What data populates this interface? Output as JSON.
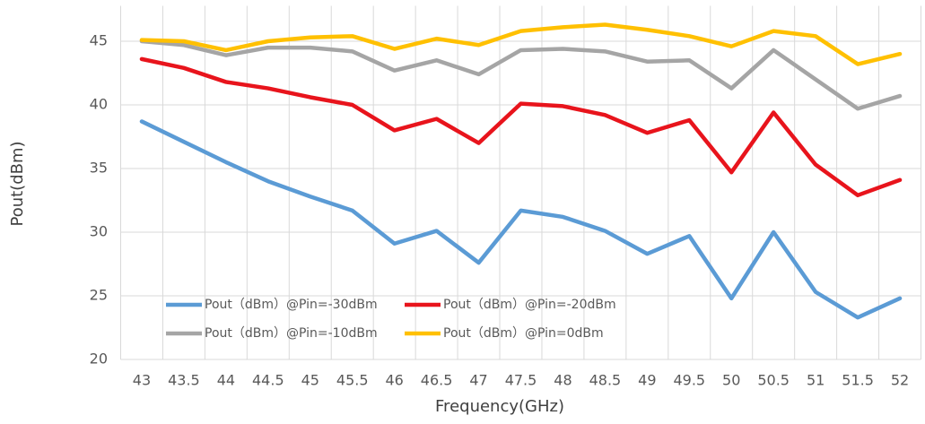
{
  "chart_data": {
    "type": "line",
    "categories": [
      "43",
      "43.5",
      "44",
      "44.5",
      "45",
      "45.5",
      "46",
      "46.5",
      "47",
      "47.5",
      "48",
      "48.5",
      "49",
      "49.5",
      "50",
      "50.5",
      "51",
      "51.5",
      "52"
    ],
    "x_label": "Frequency(GHz)",
    "y_label": "Pout(dBm)",
    "ylim": [
      20,
      47.5
    ],
    "yticks": [
      20,
      25,
      30,
      35,
      40,
      45
    ],
    "grid": true,
    "legend": "lower left",
    "series": [
      {
        "name": "Pout（dBm）@Pin=-30dBm",
        "color": "#5b9bd5",
        "values": [
          38.7,
          37.1,
          35.5,
          34.0,
          32.8,
          31.7,
          29.1,
          30.1,
          27.6,
          31.7,
          31.2,
          30.1,
          28.3,
          29.7,
          24.8,
          30.0,
          25.3,
          23.3,
          24.8
        ]
      },
      {
        "name": "Pout（dBm）@Pin=-20dBm",
        "color": "#e8141c",
        "values": [
          43.6,
          42.9,
          41.8,
          41.3,
          40.6,
          40.0,
          38.0,
          38.9,
          37.0,
          40.1,
          39.9,
          39.2,
          37.8,
          38.8,
          34.7,
          39.4,
          35.3,
          32.9,
          34.1
        ]
      },
      {
        "name": "Pout（dBm）@Pin=-10dBm",
        "color": "#a5a5a5",
        "values": [
          45.0,
          44.7,
          43.9,
          44.5,
          44.5,
          44.2,
          42.7,
          43.5,
          42.4,
          44.3,
          44.4,
          44.2,
          43.4,
          43.5,
          41.3,
          44.3,
          42.0,
          39.7,
          40.7
        ]
      },
      {
        "name": "Pout（dBm）@Pin=0dBm",
        "color": "#ffc000",
        "values": [
          45.1,
          45.0,
          44.3,
          45.0,
          45.3,
          45.4,
          44.4,
          45.2,
          44.7,
          45.8,
          46.1,
          46.3,
          45.9,
          45.4,
          44.6,
          45.8,
          45.4,
          43.2,
          44.0
        ]
      }
    ]
  }
}
